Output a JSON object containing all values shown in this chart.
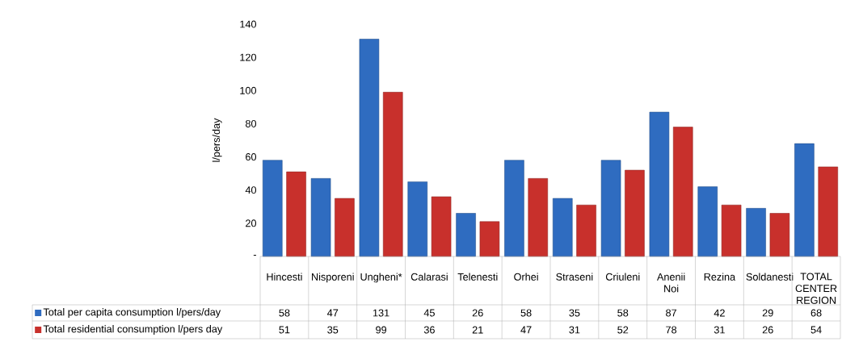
{
  "chart_data": {
    "type": "bar",
    "ylabel": "l/pers/day",
    "categories": [
      "Hincesti",
      "Nisporeni",
      "Ungheni*",
      "Calarasi",
      "Telenesti",
      "Orhei",
      "Straseni",
      "Criuleni",
      "Anenii Noi",
      "Rezina",
      "Soldanesti",
      "TOTAL CENTER REGION"
    ],
    "series": [
      {
        "name": "Total per capita consumption l/pers/day",
        "color": "#2f6cc0",
        "values": [
          58,
          47,
          131,
          45,
          26,
          58,
          35,
          58,
          87,
          42,
          29,
          68
        ]
      },
      {
        "name": "Total residential consumption l/pers day",
        "color": "#c8302c",
        "values": [
          51,
          35,
          99,
          36,
          21,
          47,
          31,
          52,
          78,
          31,
          26,
          54
        ]
      }
    ],
    "ylim": [
      0,
      140
    ],
    "yticks": [
      {
        "value": 0,
        "label": "-"
      },
      20,
      40,
      60,
      80,
      100,
      120,
      140
    ],
    "data_labels": true,
    "legend": "bottom left",
    "grid": false
  }
}
